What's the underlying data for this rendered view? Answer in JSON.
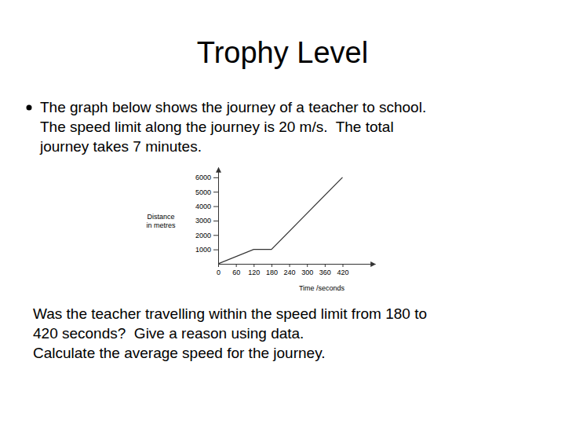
{
  "slide": {
    "title": "Trophy Level",
    "bullet_lines": [
      "The graph below shows the journey of a teacher to school.",
      "The speed limit along the journey is 20 m/s.  The total",
      "journey takes 7 minutes."
    ],
    "question_lines": [
      "Was the teacher travelling within the speed limit from 180 to",
      "420 seconds?  Give a reason using data.",
      "Calculate the average speed for the journey."
    ]
  },
  "chart_data": {
    "type": "line",
    "xlabel": "Time /seconds",
    "ylabel": [
      "Distance",
      "in metres"
    ],
    "x": [
      0,
      120,
      180,
      420
    ],
    "values": [
      0,
      1000,
      1000,
      6000
    ],
    "color": "#333333",
    "xlim": [
      0,
      530
    ],
    "xticks": [
      0,
      60,
      120,
      180,
      240,
      300,
      360,
      420
    ],
    "ylim": [
      0,
      6700
    ],
    "yticks": [
      1000,
      2000,
      3000,
      4000,
      5000,
      6000
    ],
    "grid": false
  }
}
